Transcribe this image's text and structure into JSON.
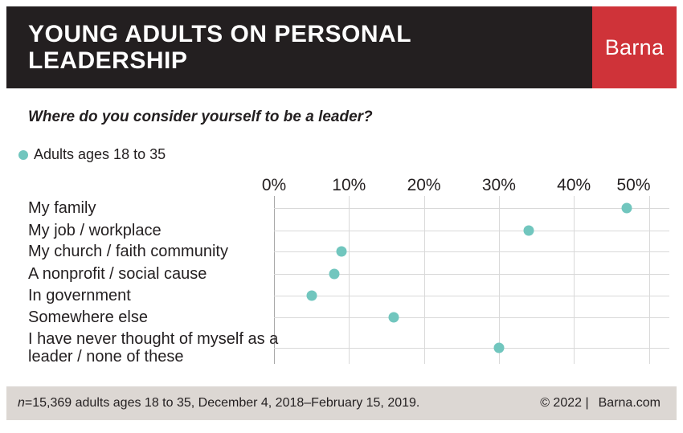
{
  "header": {
    "title_line1": "YOUNG ADULTS ON PERSONAL",
    "title_line2": "LEADERSHIP",
    "brand": "Barna",
    "colors": {
      "bar": "#231f20",
      "brand_bg": "#cf3339",
      "brand_text": "#ffffff"
    }
  },
  "question": "Where do you consider yourself to be a leader?",
  "legend": {
    "label": "Adults ages 18 to 35",
    "dot_color": "#71c6be"
  },
  "chart_data": {
    "type": "scatter",
    "variant": "dot-plot",
    "title": "Where do you consider yourself to be a leader?",
    "series_name": "Adults ages 18 to 35",
    "categories": [
      "My family",
      "My job / workplace",
      "My church / faith community",
      "A nonprofit / social cause",
      "In government",
      "Somewhere else",
      "I have never thought of myself as a leader / none of these"
    ],
    "values": [
      47,
      34,
      9,
      8,
      5,
      16,
      30
    ],
    "unit": "%",
    "x_ticks": [
      "0%",
      "10%",
      "20%",
      "30%",
      "40%",
      "50%"
    ],
    "x_tick_values": [
      0,
      10,
      20,
      30,
      40,
      50
    ],
    "xlim": [
      0,
      50
    ],
    "grid": true,
    "legend_position": "top-left",
    "dot_color": "#71c6be",
    "gridline_color": "#d9d9d9",
    "zero_line_color": "#a9a9a9"
  },
  "footer": {
    "note_italic": "n",
    "note": "=15,369 adults ages 18 to 35, December 4, 2018–February 15, 2019.",
    "copyright": "© 2022 |",
    "site": "Barna.com",
    "bg_color": "#dcd7d3"
  }
}
